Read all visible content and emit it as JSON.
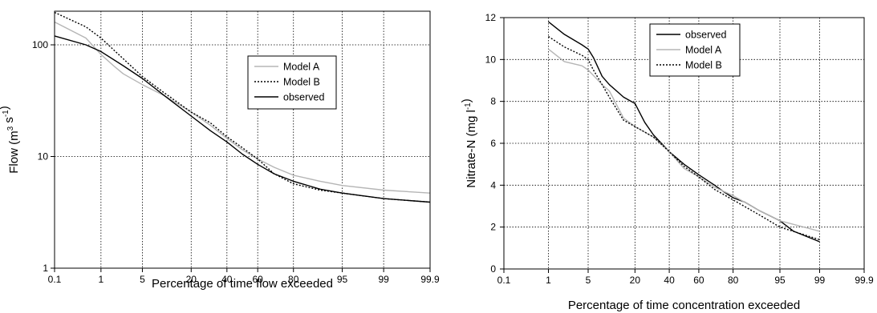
{
  "chart_data": [
    {
      "type": "line",
      "title": "",
      "xlabel": "Percentage of time flow exceeded",
      "ylabel": "Flow (m³ s⁻¹)",
      "ylabel_parts": {
        "base": "Flow (m",
        "sup1": "3",
        "mid": " s",
        "sup2": "-1",
        "end": ")"
      },
      "x_scale": "probability",
      "y_scale": "log",
      "xlim": [
        0.1,
        99.9
      ],
      "ylim": [
        1,
        200
      ],
      "x_ticks": [
        0.1,
        1,
        5,
        20,
        40,
        60,
        80,
        95,
        99,
        99.9
      ],
      "x_tick_labels": [
        "0.1",
        "1",
        "5",
        "20",
        "40",
        "60",
        "80",
        "95",
        "99",
        "99.9"
      ],
      "y_ticks": [
        1,
        10,
        100
      ],
      "y_tick_labels": [
        "1",
        "10",
        "100"
      ],
      "grid": true,
      "legend": "top-right",
      "series": [
        {
          "name": "Model A",
          "color": "#b5b5b5",
          "dash": "solid",
          "x": [
            0.1,
            0.5,
            1,
            1.7,
            2.5,
            5,
            10,
            20,
            30,
            40,
            50,
            60,
            70,
            80,
            90,
            95,
            99,
            99.9
          ],
          "y": [
            160,
            115,
            82,
            65,
            55,
            44,
            35,
            25,
            19,
            14.5,
            11.5,
            9.5,
            8,
            6.8,
            6,
            5.5,
            5,
            4.7
          ]
        },
        {
          "name": "Model B",
          "color": "#000000",
          "dash": "dotted",
          "x": [
            0.1,
            0.5,
            1,
            2.5,
            5,
            10,
            20,
            30,
            40,
            50,
            60,
            70,
            80,
            90,
            95,
            99,
            99.9
          ],
          "y": [
            195,
            145,
            115,
            75,
            52,
            37,
            25,
            20,
            15,
            12,
            9.5,
            7,
            5.7,
            5,
            4.7,
            4.2,
            3.9
          ]
        },
        {
          "name": "observed",
          "color": "#000000",
          "dash": "solid",
          "x": [
            0.1,
            0.5,
            1,
            2.5,
            5,
            10,
            20,
            30,
            40,
            50,
            60,
            70,
            80,
            90,
            95,
            99,
            99.9
          ],
          "y": [
            120,
            100,
            87,
            65,
            50,
            35,
            23,
            17,
            13.5,
            10.5,
            8.5,
            7,
            6,
            5.1,
            4.7,
            4.2,
            3.9
          ]
        }
      ]
    },
    {
      "type": "line",
      "title": "",
      "xlabel": "Percentage of time concentration exceeded",
      "ylabel": "Nitrate-N (mg l⁻¹)",
      "ylabel_parts": {
        "base": "Nitrate-N (mg l",
        "sup1": "-1",
        "end": ")"
      },
      "x_scale": "probability",
      "y_scale": "linear",
      "xlim": [
        0.1,
        99.9
      ],
      "ylim": [
        0,
        12
      ],
      "x_ticks": [
        0.1,
        1,
        5,
        20,
        40,
        60,
        80,
        95,
        99,
        99.9
      ],
      "x_tick_labels": [
        "0.1",
        "1",
        "5",
        "20",
        "40",
        "60",
        "80",
        "95",
        "99",
        "99.9"
      ],
      "y_ticks": [
        0,
        2,
        4,
        6,
        8,
        10,
        12
      ],
      "y_tick_labels": [
        "0",
        "2",
        "4",
        "6",
        "8",
        "10",
        "12"
      ],
      "grid": true,
      "legend": "top-right",
      "series": [
        {
          "name": "observed",
          "color": "#000000",
          "dash": "solid",
          "x": [
            1,
            2,
            4,
            5,
            6,
            8,
            10,
            15,
            20,
            25,
            30,
            40,
            50,
            60,
            70,
            75,
            80,
            85,
            90,
            95,
            97,
            99
          ],
          "y": [
            11.8,
            11.2,
            10.7,
            10.5,
            10.1,
            9.2,
            8.8,
            8.2,
            7.9,
            7.0,
            6.4,
            5.6,
            5.0,
            4.5,
            4.0,
            3.7,
            3.4,
            3.2,
            2.8,
            2.3,
            1.8,
            1.3
          ]
        },
        {
          "name": "Model A",
          "color": "#b5b5b5",
          "dash": "solid",
          "x": [
            1,
            2,
            4,
            5,
            8,
            10,
            15,
            20,
            30,
            40,
            50,
            60,
            70,
            80,
            90,
            95,
            99
          ],
          "y": [
            10.5,
            9.9,
            9.7,
            9.5,
            8.8,
            8.5,
            7.2,
            6.8,
            6.3,
            5.6,
            4.8,
            4.4,
            3.9,
            3.5,
            2.8,
            2.3,
            1.8
          ]
        },
        {
          "name": "Model B",
          "color": "#000000",
          "dash": "dotted",
          "x": [
            1,
            2,
            4,
            5,
            6,
            8,
            10,
            15,
            20,
            30,
            40,
            50,
            60,
            70,
            80,
            90,
            95,
            99
          ],
          "y": [
            11.1,
            10.6,
            10.2,
            10.0,
            9.5,
            8.8,
            8.2,
            7.1,
            6.8,
            6.3,
            5.6,
            4.9,
            4.4,
            3.8,
            3.3,
            2.6,
            2.0,
            1.4
          ]
        }
      ]
    }
  ]
}
